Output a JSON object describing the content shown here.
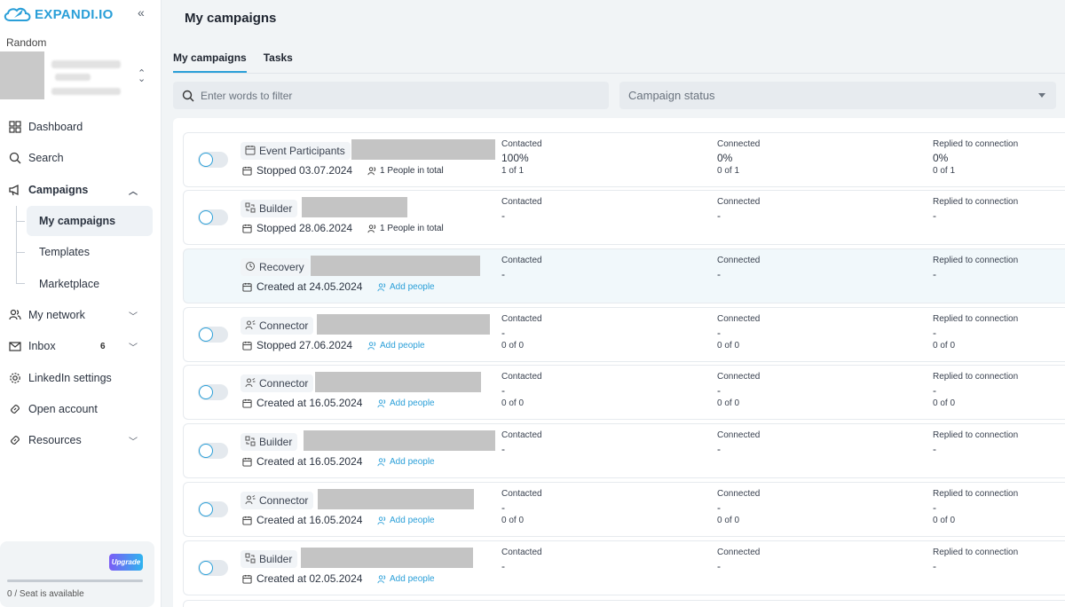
{
  "app": {
    "logo_text": "EXPANDI.IO",
    "workspace": "Random",
    "accent": "#2a9fd8"
  },
  "nav": {
    "dashboard": "Dashboard",
    "search": "Search",
    "campaigns": "Campaigns",
    "my_campaigns": "My campaigns",
    "templates": "Templates",
    "marketplace": "Marketplace",
    "my_network": "My network",
    "inbox": "Inbox",
    "inbox_count": "6",
    "linkedin_settings": "LinkedIn settings",
    "open_account": "Open account",
    "resources": "Resources"
  },
  "upgrade": {
    "label": "Upgrade",
    "seat_text": "0 / Seat is available"
  },
  "page": {
    "title": "My campaigns"
  },
  "tabs": [
    "My campaigns",
    "Tasks"
  ],
  "filter": {
    "placeholder": "Enter words to filter",
    "status_label": "Campaign status"
  },
  "stat_labels": {
    "contacted": "Contacted",
    "connected": "Connected",
    "replied": "Replied to connection"
  },
  "campaigns": [
    {
      "type": "Event Participants",
      "icon": "calendar-icon",
      "date": "Stopped 03.07.2024",
      "people": "1 People in total",
      "people_link": false,
      "toggle": true,
      "contacted": "100%",
      "contacted_sub": "1 of 1",
      "connected": "0%",
      "connected_sub": "0 of 1",
      "replied": "0%",
      "replied_sub": "0 of 1"
    },
    {
      "type": "Builder",
      "icon": "builder-icon",
      "date": "Stopped 28.06.2024",
      "people": "1 People in total",
      "people_link": false,
      "toggle": true,
      "contacted": "-",
      "contacted_sub": "",
      "connected": "-",
      "connected_sub": "",
      "replied": "-",
      "replied_sub": ""
    },
    {
      "type": "Recovery",
      "icon": "recovery-icon",
      "date": "Created at 24.05.2024",
      "people": "Add people",
      "people_link": true,
      "toggle": false,
      "contacted": "-",
      "contacted_sub": "",
      "connected": "-",
      "connected_sub": "",
      "replied": "-",
      "replied_sub": ""
    },
    {
      "type": "Connector",
      "icon": "connector-icon",
      "date": "Stopped 27.06.2024",
      "people": "Add people",
      "people_link": true,
      "toggle": true,
      "contacted": "-",
      "contacted_sub": "0 of 0",
      "connected": "-",
      "connected_sub": "0 of 0",
      "replied": "-",
      "replied_sub": "0 of 0"
    },
    {
      "type": "Connector",
      "icon": "connector-icon",
      "date": "Created at 16.05.2024",
      "people": "Add people",
      "people_link": true,
      "toggle": true,
      "contacted": "-",
      "contacted_sub": "0 of 0",
      "connected": "-",
      "connected_sub": "0 of 0",
      "replied": "-",
      "replied_sub": "0 of 0"
    },
    {
      "type": "Builder",
      "icon": "builder-icon",
      "date": "Created at 16.05.2024",
      "people": "Add people",
      "people_link": true,
      "toggle": true,
      "contacted": "-",
      "contacted_sub": "",
      "connected": "-",
      "connected_sub": "",
      "replied": "-",
      "replied_sub": ""
    },
    {
      "type": "Connector",
      "icon": "connector-icon",
      "date": "Created at 16.05.2024",
      "people": "Add people",
      "people_link": true,
      "toggle": true,
      "contacted": "-",
      "contacted_sub": "0 of 0",
      "connected": "-",
      "connected_sub": "0 of 0",
      "replied": "-",
      "replied_sub": "0 of 0"
    },
    {
      "type": "Builder",
      "icon": "builder-icon",
      "date": "Created at 02.05.2024",
      "people": "Add people",
      "people_link": true,
      "toggle": true,
      "contacted": "-",
      "contacted_sub": "",
      "connected": "-",
      "connected_sub": "",
      "replied": "-",
      "replied_sub": ""
    }
  ]
}
